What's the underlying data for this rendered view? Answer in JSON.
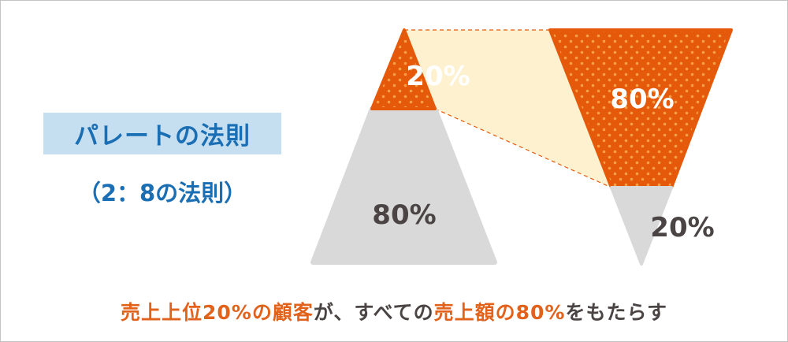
{
  "title": "パレートの法則",
  "subtitle": "（2：8の法則）",
  "customers": {
    "top_label": "20%",
    "rest_label": "80%",
    "top_share": 0.2
  },
  "sales": {
    "top_label": "80%",
    "rest_label": "20%",
    "top_share": 0.8
  },
  "caption": {
    "part1": "売上上位20%の顧客",
    "part2": "が、すべての",
    "part3": "売上額の80%",
    "part4": "をもたらす"
  },
  "colors": {
    "accent_orange": "#e55a0a",
    "dot_orange": "#f5a046",
    "gray": "#d9d9d9",
    "cream": "#fdf1cf",
    "title_blue": "#1a6eb4",
    "title_bg": "#c5dff0",
    "dark_text": "#4a4544"
  }
}
